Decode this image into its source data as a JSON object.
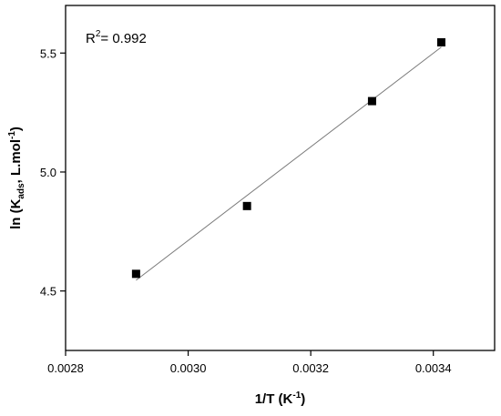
{
  "chart_data": {
    "type": "scatter",
    "xlabel": {
      "main": "1/T (K",
      "sup": "-1",
      "tail": ")"
    },
    "ylabel": {
      "pre": "ln (K",
      "sub": "ads",
      "mid": ", L.mol",
      "sup": "-1",
      "tail": ")"
    },
    "annotation": {
      "base": "R",
      "sup": "2",
      "rest": "= 0.992"
    },
    "xlim": [
      0.0028,
      0.0035
    ],
    "ylim": [
      4.25,
      5.7
    ],
    "xticks": [
      "0.0028",
      "0.0030",
      "0.0032",
      "0.0034"
    ],
    "yticks": [
      "4.5",
      "5.0",
      "5.5"
    ],
    "grid": false,
    "points": [
      {
        "x": 0.002915,
        "y": 4.572
      },
      {
        "x": 0.003096,
        "y": 4.857
      },
      {
        "x": 0.0033,
        "y": 5.298
      },
      {
        "x": 0.003413,
        "y": 5.545
      }
    ],
    "fit_line": {
      "x": [
        0.002915,
        0.003413
      ],
      "y": [
        4.545,
        5.525
      ]
    },
    "colors": {
      "marker": "#000000",
      "fit": "#7a7a7a",
      "axis": "#000000"
    }
  }
}
